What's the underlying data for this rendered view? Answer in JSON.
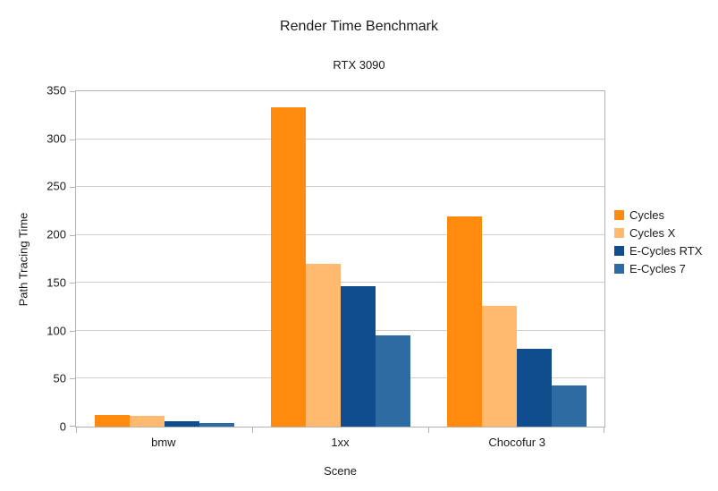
{
  "chart_data": {
    "type": "bar",
    "title": "Render Time Benchmark",
    "subtitle": "RTX 3090",
    "xlabel": "Scene",
    "ylabel": "Path Tracing Time",
    "categories": [
      "bmw",
      "1xx",
      "Chocofur 3"
    ],
    "series": [
      {
        "name": "Cycles",
        "color": "#FF8A0E",
        "values": [
          12,
          333,
          219
        ]
      },
      {
        "name": "Cycles X",
        "color": "#FFBA70",
        "values": [
          11,
          170,
          126
        ]
      },
      {
        "name": "E-Cycles RTX",
        "color": "#0F4D8C",
        "values": [
          6,
          147,
          81
        ]
      },
      {
        "name": "E-Cycles 7",
        "color": "#2F6BA3",
        "values": [
          4,
          95,
          43
        ]
      }
    ],
    "ylim": [
      0,
      350
    ],
    "yticks": [
      0,
      50,
      100,
      150,
      200,
      250,
      300,
      350
    ],
    "grid": true,
    "legend_position": "right",
    "colors": {
      "gridline": "#cfcfcf",
      "axis_border": "#b3b3b3",
      "text": "#1a1a1a",
      "background": "#ffffff"
    }
  }
}
